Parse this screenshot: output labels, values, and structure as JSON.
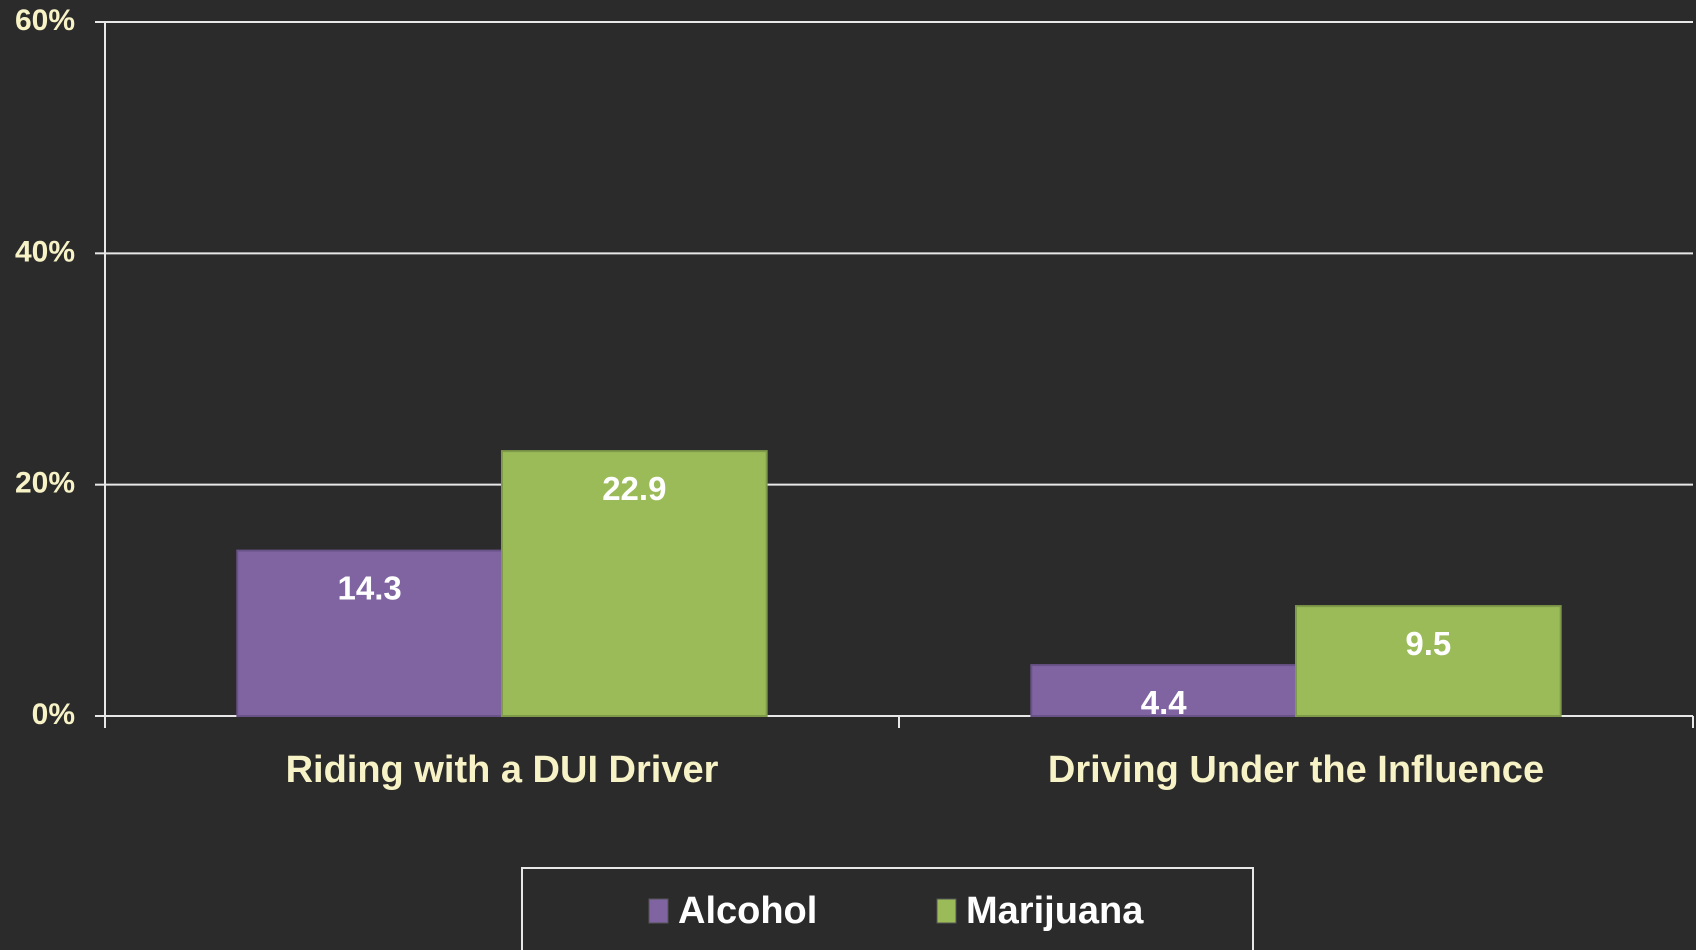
{
  "chart_data": {
    "type": "bar",
    "categories": [
      "Riding with a DUI Driver",
      "Driving Under the Influence"
    ],
    "series": [
      {
        "name": "Alcohol",
        "color": "#8064a2",
        "values": [
          14.3,
          4.4
        ]
      },
      {
        "name": "Marijuana",
        "color": "#9bbb59",
        "values": [
          22.9,
          9.5
        ]
      }
    ],
    "ylim": [
      0,
      60
    ],
    "yticks": [
      {
        "value": 0,
        "label": "0%"
      },
      {
        "value": 20,
        "label": "20%"
      },
      {
        "value": 40,
        "label": "40%"
      },
      {
        "value": 60,
        "label": "60%"
      }
    ],
    "grid": true,
    "legend": "bottom"
  }
}
